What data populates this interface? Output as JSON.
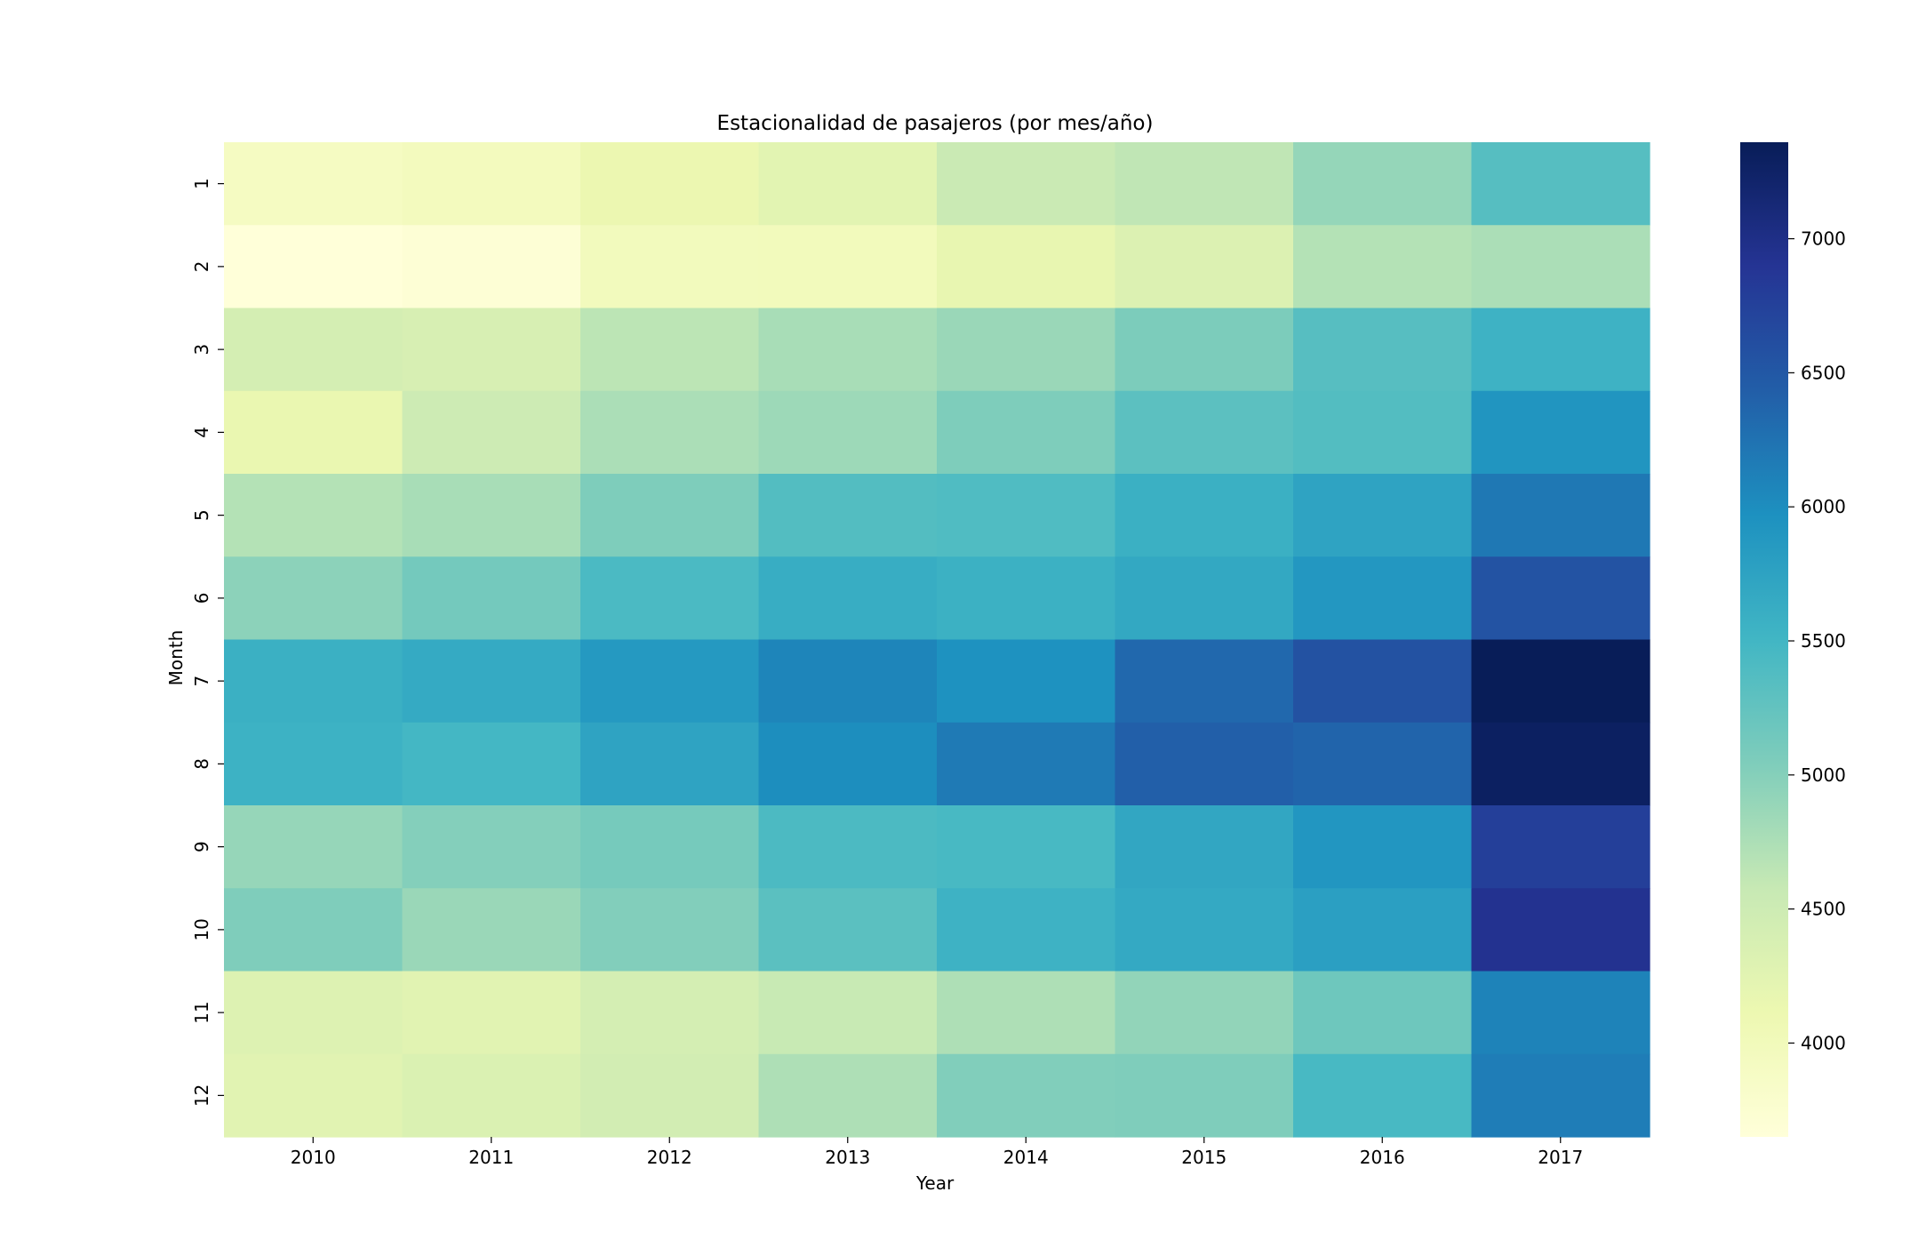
{
  "chart_data": {
    "type": "heatmap",
    "title": "Estacionalidad de pasajeros (por mes/año)",
    "xlabel": "Year",
    "ylabel": "Month",
    "x": [
      "2010",
      "2011",
      "2012",
      "2013",
      "2014",
      "2015",
      "2016",
      "2017"
    ],
    "y": [
      "1",
      "2",
      "3",
      "4",
      "5",
      "6",
      "7",
      "8",
      "9",
      "10",
      "11",
      "12"
    ],
    "values": [
      [
        3920,
        3960,
        4130,
        4250,
        4540,
        4620,
        4900,
        5350
      ],
      [
        3650,
        3700,
        3980,
        3990,
        4180,
        4320,
        4700,
        4760
      ],
      [
        4420,
        4380,
        4650,
        4780,
        4870,
        5060,
        5340,
        5550
      ],
      [
        4150,
        4510,
        4760,
        4850,
        5050,
        5300,
        5370,
        5920
      ],
      [
        4700,
        4780,
        5050,
        5370,
        5390,
        5580,
        5740,
        6200
      ],
      [
        4960,
        5120,
        5430,
        5620,
        5570,
        5680,
        5890,
        6550
      ],
      [
        5580,
        5660,
        5870,
        6080,
        5960,
        6340,
        6570,
        7360
      ],
      [
        5560,
        5480,
        5740,
        6000,
        6180,
        6420,
        6380,
        7290
      ],
      [
        4890,
        5010,
        5110,
        5420,
        5450,
        5700,
        5900,
        6770
      ],
      [
        5040,
        4870,
        5020,
        5310,
        5550,
        5670,
        5790,
        6930
      ],
      [
        4310,
        4260,
        4420,
        4560,
        4740,
        4920,
        5170,
        6100
      ],
      [
        4260,
        4340,
        4440,
        4740,
        5030,
        5040,
        5450,
        6150
      ]
    ],
    "colorbar": {
      "range": [
        3650,
        7360
      ],
      "ticks": [
        4000,
        4500,
        5000,
        5500,
        6000,
        6500,
        7000
      ],
      "tick_labels": [
        "4000",
        "4500",
        "5000",
        "5500",
        "6000",
        "6500",
        "7000"
      ],
      "colormap": "YlGnBu",
      "stops": [
        "#ffffd9",
        "#edf8b1",
        "#c7e9b4",
        "#7fcdbb",
        "#41b6c4",
        "#1d91c0",
        "#225ea8",
        "#253494",
        "#081d58"
      ]
    }
  }
}
